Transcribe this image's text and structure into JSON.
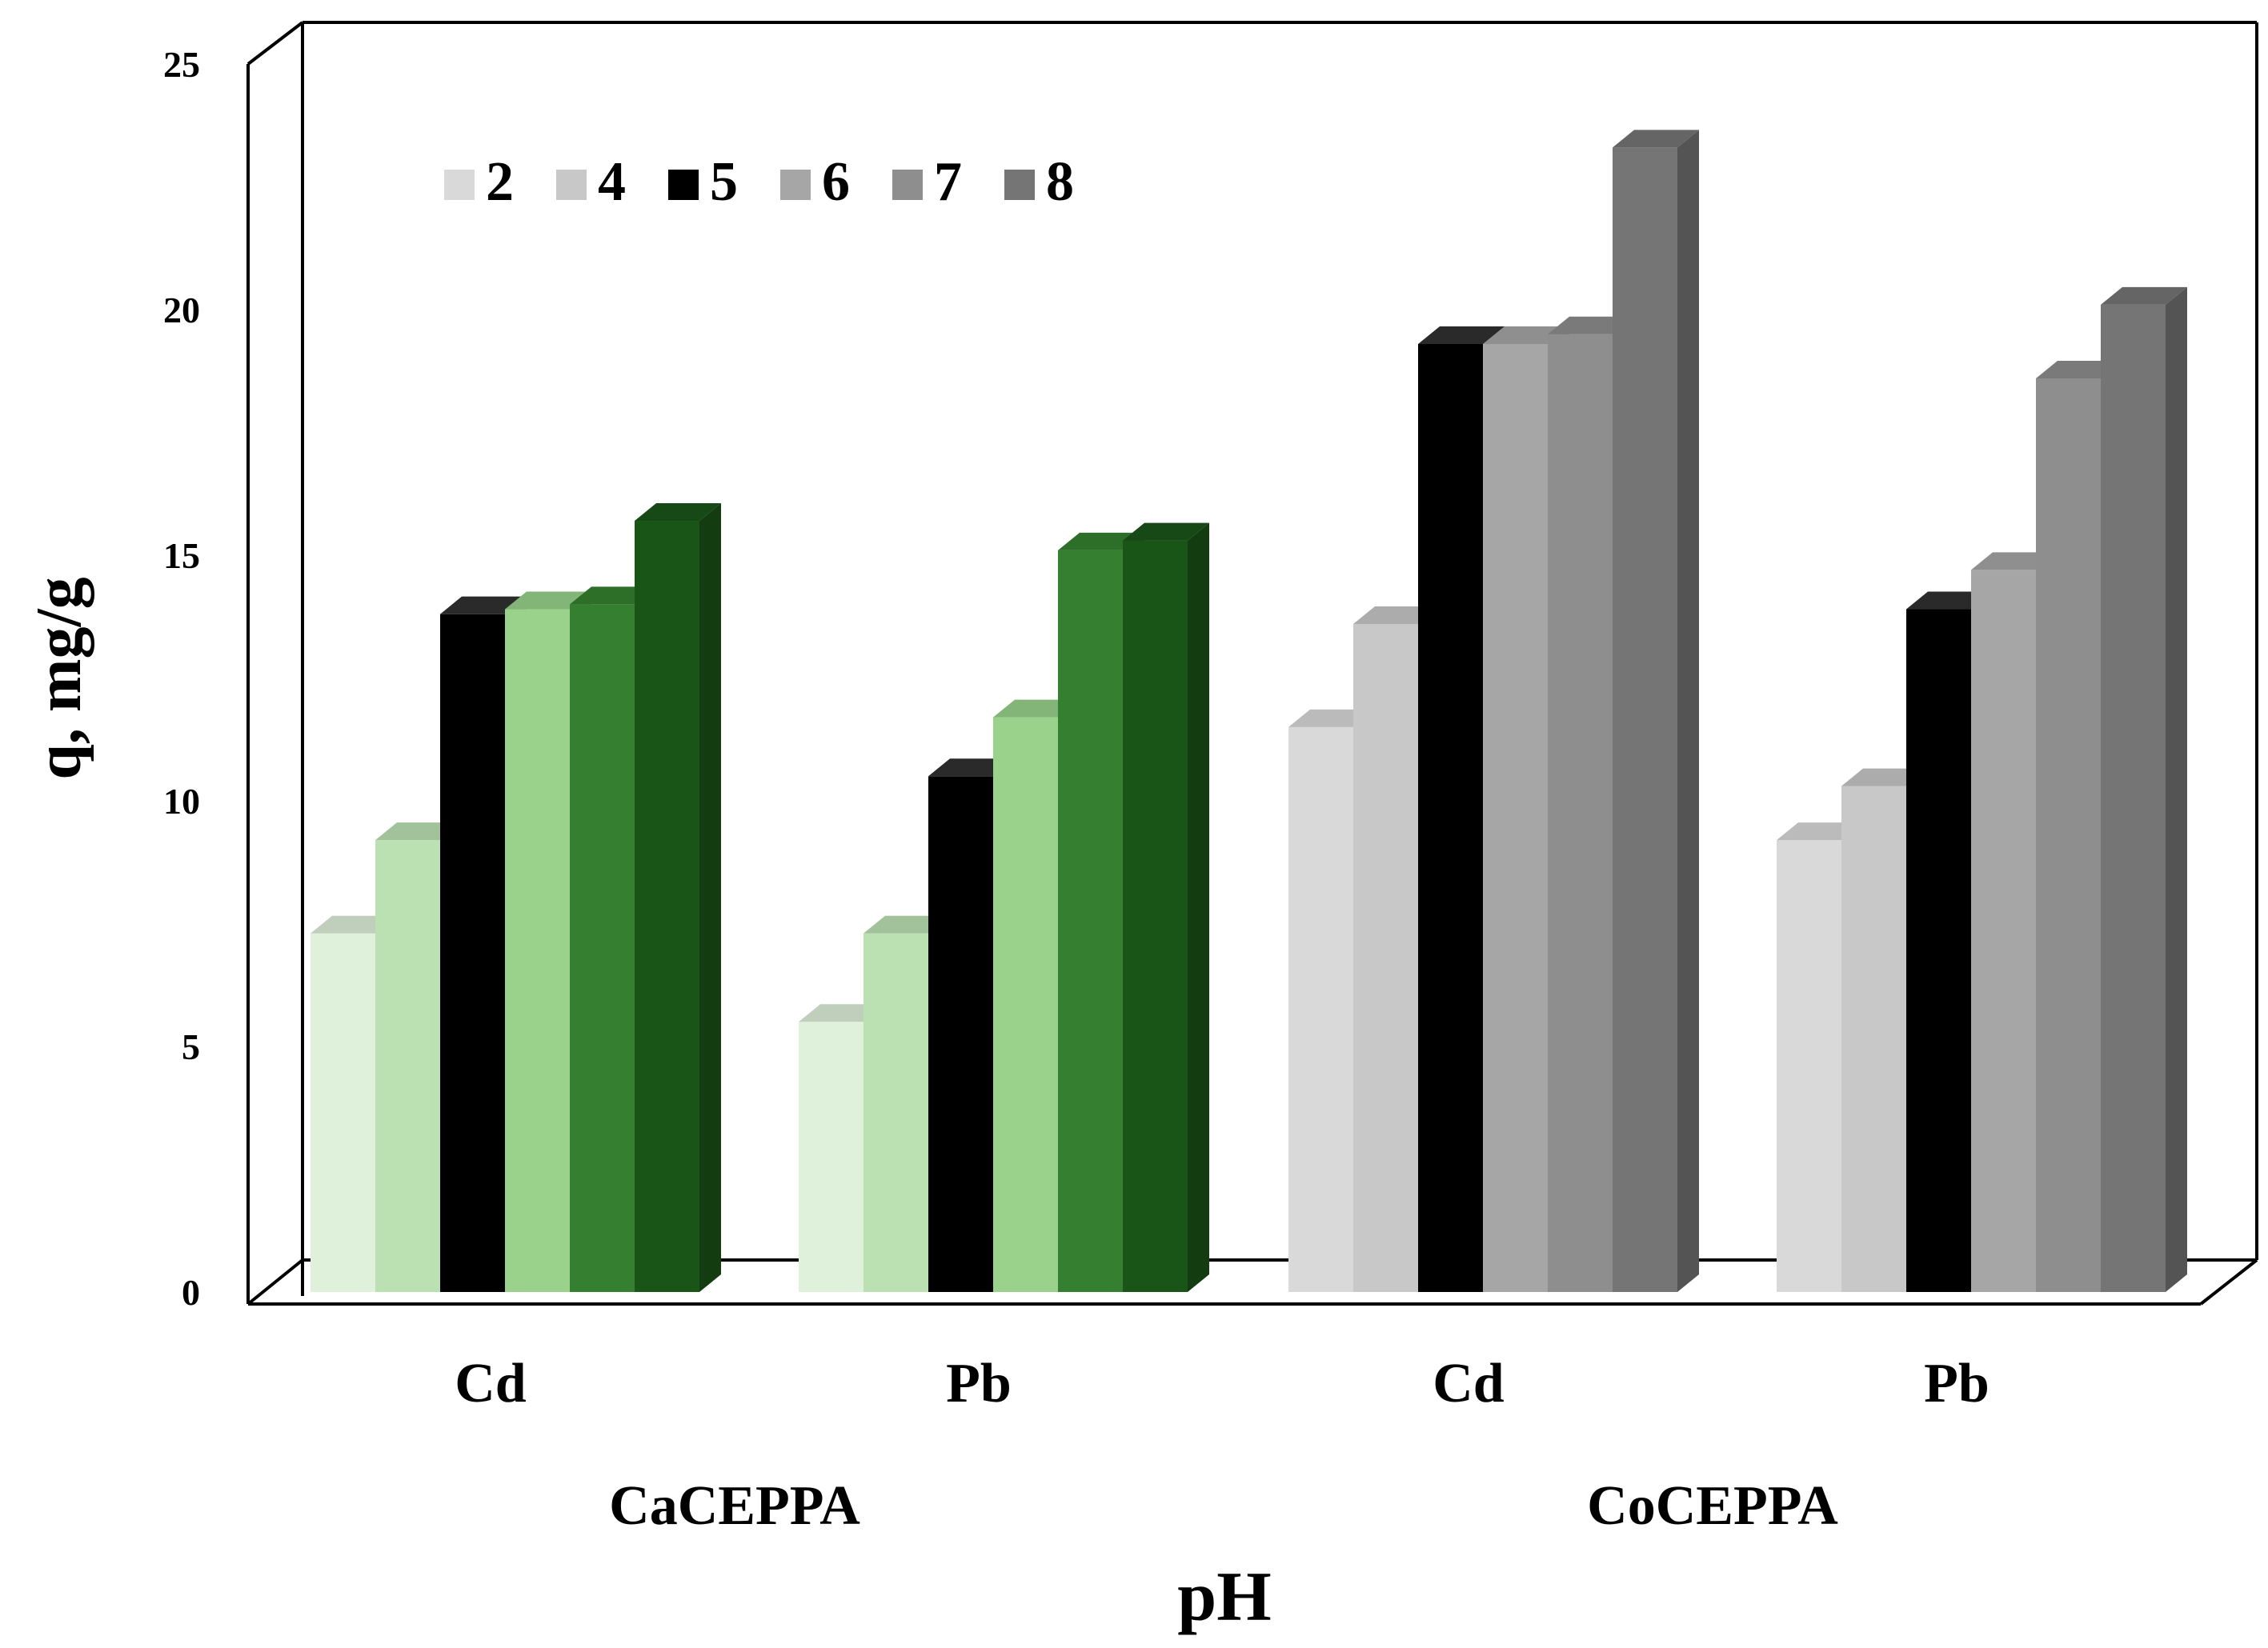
{
  "chart_data": {
    "type": "bar",
    "title": "",
    "xlabel": "pH",
    "ylabel": "q, mg/g",
    "ylim": [
      0,
      25
    ],
    "yticks": [
      "0",
      "5",
      "10",
      "15",
      "20",
      "25"
    ],
    "grid": false,
    "legend_position": "top-left",
    "legend": [
      "2",
      "4",
      "5",
      "6",
      "7",
      "8"
    ],
    "groups": [
      {
        "label": "CaCEPPA",
        "categories": [
          "Cd",
          "Pb"
        ]
      },
      {
        "label": "CoCEPPA",
        "categories": [
          "Cd",
          "Pb"
        ]
      }
    ],
    "categories": [
      "Cd",
      "Pb",
      "Cd",
      "Pb"
    ],
    "series": [
      {
        "name": "2",
        "values": [
          7.3,
          5.5,
          11.5,
          9.2
        ]
      },
      {
        "name": "4",
        "values": [
          9.2,
          7.3,
          13.6,
          10.3
        ]
      },
      {
        "name": "5",
        "values": [
          13.8,
          10.5,
          19.3,
          13.9
        ]
      },
      {
        "name": "6",
        "values": [
          13.9,
          11.7,
          19.3,
          14.7
        ]
      },
      {
        "name": "7",
        "values": [
          14.0,
          15.1,
          19.5,
          18.6
        ]
      },
      {
        "name": "8",
        "values": [
          15.7,
          15.3,
          23.3,
          20.1
        ]
      }
    ],
    "colors": {
      "CaCEPPA": [
        "#dff0db",
        "#bbe1b3",
        "#000000",
        "#9ad28c",
        "#348030",
        "#1a5518"
      ],
      "CoCEPPA": [
        "#d9d9d9",
        "#c8c8c8",
        "#000000",
        "#a6a6a6",
        "#8e8e8e",
        "#757575"
      ],
      "legend": [
        "#d9d9d9",
        "#c8c8c8",
        "#000000",
        "#a6a6a6",
        "#8e8e8e",
        "#757575"
      ]
    }
  }
}
